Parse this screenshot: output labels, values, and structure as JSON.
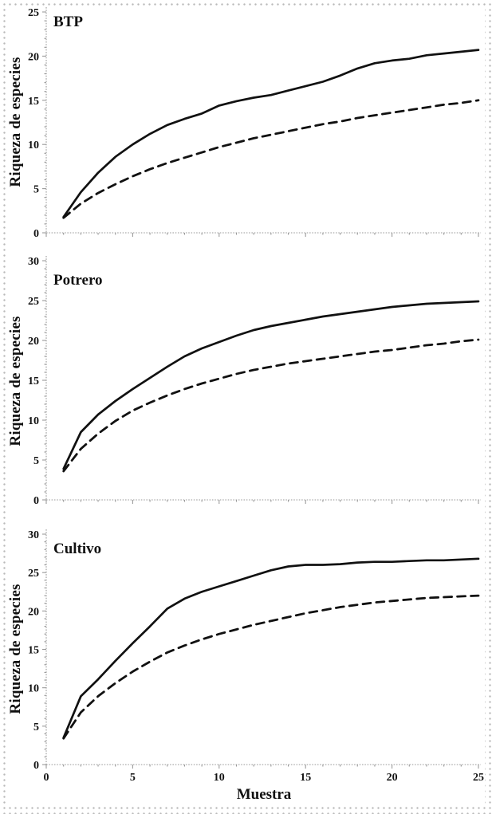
{
  "figure": {
    "background_color": "#ffffff",
    "border_dot_color": "#b9b9b9",
    "axis_color": "#9a9a9a",
    "ink_color": "#111111"
  },
  "chart_data": [
    {
      "type": "line",
      "title": "BTP",
      "xlabel": "",
      "ylabel": "Riqueza de especies",
      "xlim": [
        0,
        25
      ],
      "ylim": [
        0,
        25
      ],
      "xticks": [
        0,
        5,
        10,
        15,
        20,
        25
      ],
      "yticks": [
        0,
        5,
        10,
        15,
        20,
        25
      ],
      "minor_tick_step": 1,
      "grid": false,
      "legend": "none",
      "x": [
        1,
        2,
        3,
        4,
        5,
        6,
        7,
        8,
        9,
        10,
        11,
        12,
        13,
        14,
        15,
        16,
        17,
        18,
        19,
        20,
        21,
        22,
        23,
        24,
        25
      ],
      "series": [
        {
          "name": "solid-line",
          "line_style": "solid",
          "values": [
            1.8,
            4.6,
            6.8,
            8.6,
            10.0,
            11.2,
            12.2,
            12.9,
            13.5,
            14.4,
            14.9,
            15.3,
            15.6,
            16.1,
            16.6,
            17.1,
            17.8,
            18.6,
            19.2,
            19.5,
            19.7,
            20.1,
            20.3,
            20.5,
            20.7
          ]
        },
        {
          "name": "dashed-line",
          "line_style": "dashed",
          "values": [
            1.7,
            3.3,
            4.5,
            5.5,
            6.4,
            7.2,
            7.9,
            8.5,
            9.1,
            9.7,
            10.2,
            10.7,
            11.1,
            11.5,
            11.9,
            12.3,
            12.6,
            13.0,
            13.3,
            13.6,
            13.9,
            14.2,
            14.5,
            14.7,
            15.0
          ]
        }
      ]
    },
    {
      "type": "line",
      "title": "Potrero",
      "xlabel": "",
      "ylabel": "Riqueza de especies",
      "xlim": [
        0,
        25
      ],
      "ylim": [
        0,
        30
      ],
      "xticks": [
        0,
        5,
        10,
        15,
        20,
        25
      ],
      "yticks": [
        0,
        5,
        10,
        15,
        20,
        25,
        30
      ],
      "minor_tick_step": 1,
      "grid": false,
      "legend": "none",
      "x": [
        1,
        2,
        3,
        4,
        5,
        6,
        7,
        8,
        9,
        10,
        11,
        12,
        13,
        14,
        15,
        16,
        17,
        18,
        19,
        20,
        21,
        22,
        23,
        24,
        25
      ],
      "series": [
        {
          "name": "solid-line",
          "line_style": "solid",
          "values": [
            3.9,
            8.5,
            10.7,
            12.4,
            13.9,
            15.3,
            16.7,
            18.0,
            19.0,
            19.8,
            20.6,
            21.3,
            21.8,
            22.2,
            22.6,
            23.0,
            23.3,
            23.6,
            23.9,
            24.2,
            24.4,
            24.6,
            24.7,
            24.8,
            24.9
          ]
        },
        {
          "name": "dashed-line",
          "line_style": "dashed",
          "values": [
            3.6,
            6.4,
            8.3,
            9.9,
            11.2,
            12.2,
            13.1,
            13.9,
            14.6,
            15.2,
            15.8,
            16.3,
            16.7,
            17.1,
            17.4,
            17.7,
            18.0,
            18.3,
            18.6,
            18.8,
            19.1,
            19.4,
            19.6,
            19.9,
            20.1
          ]
        }
      ]
    },
    {
      "type": "line",
      "title": "Cultivo",
      "xlabel": "Muestra",
      "ylabel": "Riqueza de especies",
      "xlim": [
        0,
        25
      ],
      "ylim": [
        0,
        30
      ],
      "xticks": [
        0,
        5,
        10,
        15,
        20,
        25
      ],
      "yticks": [
        0,
        5,
        10,
        15,
        20,
        25,
        30
      ],
      "minor_tick_step": 1,
      "grid": false,
      "legend": "none",
      "x": [
        1,
        2,
        3,
        4,
        5,
        6,
        7,
        8,
        9,
        10,
        11,
        12,
        13,
        14,
        15,
        16,
        17,
        18,
        19,
        20,
        21,
        22,
        23,
        24,
        25
      ],
      "series": [
        {
          "name": "solid-line",
          "line_style": "solid",
          "values": [
            3.5,
            8.9,
            11.1,
            13.5,
            15.8,
            18.0,
            20.3,
            21.6,
            22.5,
            23.2,
            23.9,
            24.6,
            25.3,
            25.8,
            26.0,
            26.0,
            26.1,
            26.3,
            26.4,
            26.4,
            26.5,
            26.6,
            26.6,
            26.7,
            26.8
          ]
        },
        {
          "name": "dashed-line",
          "line_style": "dashed",
          "values": [
            3.4,
            6.8,
            8.9,
            10.6,
            12.1,
            13.4,
            14.6,
            15.5,
            16.3,
            17.0,
            17.6,
            18.2,
            18.7,
            19.2,
            19.7,
            20.1,
            20.5,
            20.8,
            21.1,
            21.3,
            21.5,
            21.7,
            21.8,
            21.9,
            22.0
          ]
        }
      ]
    }
  ]
}
